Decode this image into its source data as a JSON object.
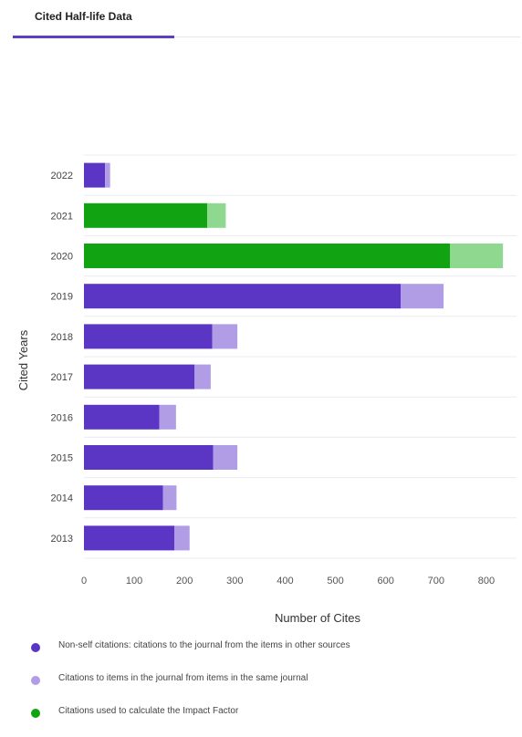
{
  "tab": {
    "label": "Cited Half-life Data"
  },
  "chart_data": {
    "type": "bar",
    "orientation": "horizontal",
    "stacked": true,
    "categories": [
      "2022",
      "2021",
      "2020",
      "2019",
      "2018",
      "2017",
      "2016",
      "2015",
      "2014",
      "2013"
    ],
    "series": [
      {
        "key": "nonself",
        "name": "Non-self citations: citations to the journal from the items in other sources",
        "color": "#5b35c4",
        "values": [
          42,
          0,
          0,
          630,
          255,
          220,
          150,
          257,
          157,
          180
        ]
      },
      {
        "key": "self",
        "name": "Citations to items in the journal from items in the same journal",
        "color": "#b19ce6",
        "values": [
          10,
          0,
          0,
          85,
          50,
          32,
          33,
          48,
          27,
          30
        ]
      },
      {
        "key": "if",
        "name": "Citations used to calculate the Impact Factor",
        "color": "#12a312",
        "values": [
          0,
          245,
          728,
          0,
          0,
          0,
          0,
          0,
          0,
          0
        ]
      },
      {
        "key": "if_light",
        "name": "",
        "color": "#8fd88f",
        "values": [
          0,
          37,
          105,
          0,
          0,
          0,
          0,
          0,
          0,
          0
        ]
      }
    ],
    "xlabel": "Number of Cites",
    "ylabel": "Cited Years",
    "xlim": [
      0,
      860
    ],
    "xticks": [
      0,
      100,
      200,
      300,
      400,
      500,
      600,
      700,
      800
    ],
    "grid": true,
    "legend_position": "bottom"
  },
  "legend": [
    {
      "label": "Non-self citations: citations to the journal from the items in other sources",
      "color": "#5b35c4"
    },
    {
      "label": "Citations to items in the journal from items in the same journal",
      "color": "#b19ce6"
    },
    {
      "label": "Citations used to calculate the Impact Factor",
      "color": "#12a312"
    }
  ]
}
